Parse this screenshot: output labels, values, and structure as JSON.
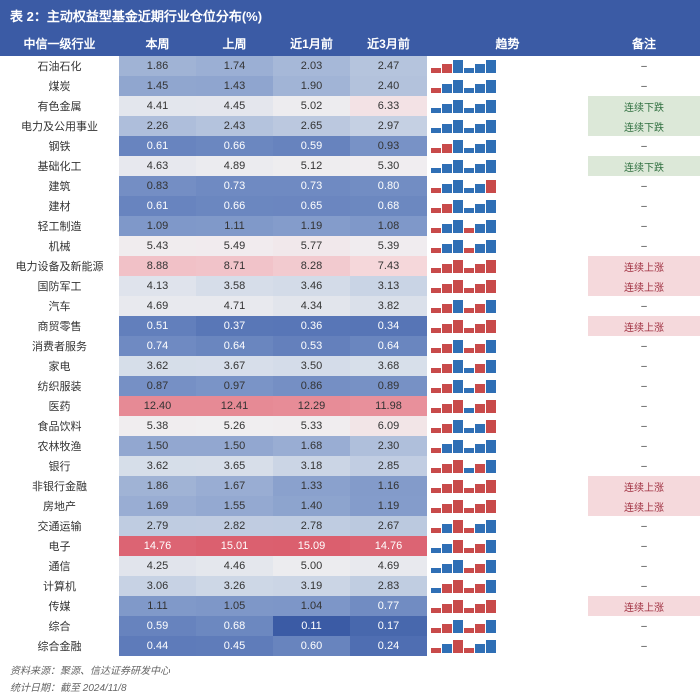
{
  "title": "表 2：主动权益型基金近期行业仓位分布(%)",
  "columns": [
    "中信一级行业",
    "本周",
    "上周",
    "近1月前",
    "近3月前",
    "趋势",
    "备注"
  ],
  "col_widths": [
    "17%",
    "11%",
    "11%",
    "11%",
    "11%",
    "23%",
    "16%"
  ],
  "header_bg": "#3b5ba5",
  "trend_colors": {
    "up": "#c84a4a",
    "down": "#2f6fb5"
  },
  "remark_up": "连续上涨",
  "remark_down": "连续下跌",
  "dash": "–",
  "heat_scale": {
    "colors_low_to_high": [
      "#3b5ba5",
      "#5a78b8",
      "#7f98c9",
      "#aabbd9",
      "#d5dde9",
      "#f0eef0",
      "#f5d9dc",
      "#efb7be",
      "#e78d98",
      "#db5f6e"
    ],
    "min": 0.11,
    "max": 15.09
  },
  "rows": [
    {
      "label": "石油石化",
      "vals": [
        1.86,
        1.74,
        2.03,
        2.47
      ],
      "bars": [
        1,
        1,
        -1,
        -1,
        -1,
        -1
      ],
      "remark": ""
    },
    {
      "label": "煤炭",
      "vals": [
        1.45,
        1.43,
        1.9,
        2.4
      ],
      "bars": [
        1,
        -1,
        -1,
        -1,
        -1,
        -1
      ],
      "remark": ""
    },
    {
      "label": "有色金属",
      "vals": [
        4.41,
        4.45,
        5.02,
        6.33
      ],
      "bars": [
        -1,
        -1,
        -1,
        -1,
        -1,
        -1
      ],
      "remark": "down"
    },
    {
      "label": "电力及公用事业",
      "vals": [
        2.26,
        2.43,
        2.65,
        2.97
      ],
      "bars": [
        -1,
        -1,
        -1,
        -1,
        -1,
        -1
      ],
      "remark": "down"
    },
    {
      "label": "钢铁",
      "vals": [
        0.61,
        0.66,
        0.59,
        0.93
      ],
      "bars": [
        1,
        1,
        -1,
        -1,
        -1,
        -1
      ],
      "remark": ""
    },
    {
      "label": "基础化工",
      "vals": [
        4.63,
        4.89,
        5.12,
        5.3
      ],
      "bars": [
        -1,
        -1,
        -1,
        -1,
        -1,
        -1
      ],
      "remark": "down"
    },
    {
      "label": "建筑",
      "vals": [
        0.83,
        0.73,
        0.73,
        0.8
      ],
      "bars": [
        1,
        -1,
        -1,
        -1,
        -1,
        1
      ],
      "remark": ""
    },
    {
      "label": "建材",
      "vals": [
        0.61,
        0.66,
        0.65,
        0.68
      ],
      "bars": [
        1,
        1,
        -1,
        -1,
        -1,
        -1
      ],
      "remark": ""
    },
    {
      "label": "轻工制造",
      "vals": [
        1.09,
        1.11,
        1.19,
        1.08
      ],
      "bars": [
        1,
        -1,
        -1,
        1,
        -1,
        -1
      ],
      "remark": ""
    },
    {
      "label": "机械",
      "vals": [
        5.43,
        5.49,
        5.77,
        5.39
      ],
      "bars": [
        1,
        -1,
        -1,
        1,
        -1,
        -1
      ],
      "remark": ""
    },
    {
      "label": "电力设备及新能源",
      "vals": [
        8.88,
        8.71,
        8.28,
        7.43
      ],
      "bars": [
        1,
        1,
        1,
        1,
        1,
        1
      ],
      "remark": "up"
    },
    {
      "label": "国防军工",
      "vals": [
        4.13,
        3.58,
        3.46,
        3.13
      ],
      "bars": [
        1,
        1,
        1,
        1,
        1,
        1
      ],
      "remark": "up"
    },
    {
      "label": "汽车",
      "vals": [
        4.69,
        4.71,
        4.34,
        3.82
      ],
      "bars": [
        1,
        1,
        -1,
        1,
        1,
        -1
      ],
      "remark": ""
    },
    {
      "label": "商贸零售",
      "vals": [
        0.51,
        0.37,
        0.36,
        0.34
      ],
      "bars": [
        1,
        1,
        1,
        1,
        1,
        1
      ],
      "remark": "up"
    },
    {
      "label": "消费者服务",
      "vals": [
        0.74,
        0.64,
        0.53,
        0.64
      ],
      "bars": [
        1,
        1,
        -1,
        1,
        1,
        -1
      ],
      "remark": ""
    },
    {
      "label": "家电",
      "vals": [
        3.62,
        3.67,
        3.5,
        3.68
      ],
      "bars": [
        1,
        1,
        -1,
        -1,
        1,
        -1
      ],
      "remark": ""
    },
    {
      "label": "纺织服装",
      "vals": [
        0.87,
        0.97,
        0.86,
        0.89
      ],
      "bars": [
        1,
        1,
        -1,
        -1,
        1,
        -1
      ],
      "remark": ""
    },
    {
      "label": "医药",
      "vals": [
        12.4,
        12.41,
        12.29,
        11.98
      ],
      "bars": [
        1,
        1,
        1,
        -1,
        1,
        1
      ],
      "remark": ""
    },
    {
      "label": "食品饮料",
      "vals": [
        5.38,
        5.26,
        5.33,
        6.09
      ],
      "bars": [
        1,
        1,
        -1,
        -1,
        -1,
        1
      ],
      "remark": ""
    },
    {
      "label": "农林牧渔",
      "vals": [
        1.5,
        1.5,
        1.68,
        2.3
      ],
      "bars": [
        1,
        -1,
        -1,
        -1,
        -1,
        -1
      ],
      "remark": ""
    },
    {
      "label": "银行",
      "vals": [
        3.62,
        3.65,
        3.18,
        2.85
      ],
      "bars": [
        1,
        1,
        1,
        -1,
        1,
        -1
      ],
      "remark": ""
    },
    {
      "label": "非银行金融",
      "vals": [
        1.86,
        1.67,
        1.33,
        1.16
      ],
      "bars": [
        1,
        1,
        1,
        1,
        1,
        1
      ],
      "remark": "up"
    },
    {
      "label": "房地产",
      "vals": [
        1.69,
        1.55,
        1.4,
        1.19
      ],
      "bars": [
        1,
        1,
        1,
        1,
        1,
        1
      ],
      "remark": "up"
    },
    {
      "label": "交通运输",
      "vals": [
        2.79,
        2.82,
        2.78,
        2.67
      ],
      "bars": [
        1,
        -1,
        1,
        1,
        -1,
        -1
      ],
      "remark": ""
    },
    {
      "label": "电子",
      "vals": [
        14.76,
        15.01,
        15.09,
        14.76
      ],
      "bars": [
        -1,
        -1,
        1,
        1,
        1,
        -1
      ],
      "remark": ""
    },
    {
      "label": "通信",
      "vals": [
        4.25,
        4.46,
        5.0,
        4.69
      ],
      "bars": [
        -1,
        -1,
        -1,
        1,
        1,
        -1
      ],
      "remark": ""
    },
    {
      "label": "计算机",
      "vals": [
        3.06,
        3.26,
        3.19,
        2.83
      ],
      "bars": [
        -1,
        1,
        1,
        1,
        1,
        -1
      ],
      "remark": ""
    },
    {
      "label": "传媒",
      "vals": [
        1.11,
        1.05,
        1.04,
        0.77
      ],
      "bars": [
        1,
        1,
        1,
        1,
        1,
        1
      ],
      "remark": "up"
    },
    {
      "label": "综合",
      "vals": [
        0.59,
        0.68,
        0.11,
        0.17
      ],
      "bars": [
        1,
        1,
        -1,
        1,
        1,
        -1
      ],
      "remark": ""
    },
    {
      "label": "综合金融",
      "vals": [
        0.44,
        0.45,
        0.6,
        0.24
      ],
      "bars": [
        1,
        -1,
        1,
        1,
        -1,
        -1
      ],
      "remark": ""
    }
  ],
  "footer_source": "资料来源：聚源、信达证券研发中心",
  "footer_date": "统计日期：截至 2024/11/8"
}
